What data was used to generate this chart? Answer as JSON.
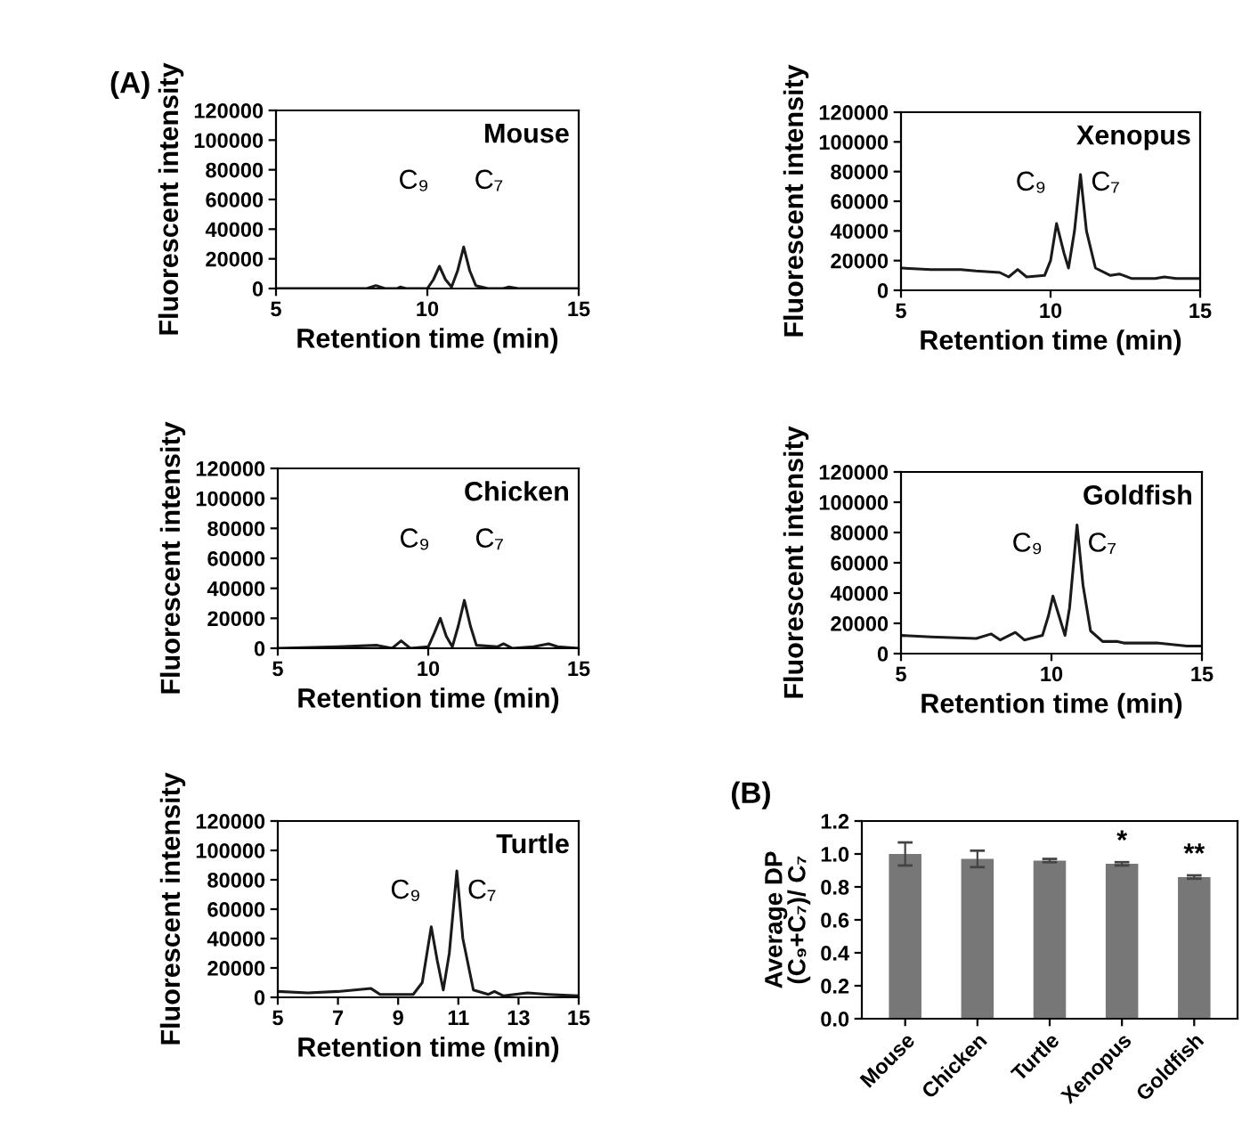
{
  "chart_data": [
    {
      "type": "line",
      "title": "Mouse",
      "xlabel": "Retention time (min)",
      "ylabel": "Fluorescent intensity",
      "xlim": [
        5,
        15
      ],
      "xticks": [
        5,
        10,
        15
      ],
      "ylim": [
        0,
        120000
      ],
      "yticks": [
        0,
        20000,
        40000,
        60000,
        80000,
        100000,
        120000
      ],
      "grid": false,
      "legend": false,
      "marker": "none",
      "line_style": "solid",
      "series": [
        {
          "color": "#1a1a1a",
          "x": [
            5,
            6,
            7,
            8,
            8.3,
            8.6,
            9,
            9.1,
            9.3,
            10,
            10.2,
            10.4,
            10.6,
            10.8,
            11.0,
            11.2,
            11.4,
            11.6,
            12,
            12.5,
            12.7,
            13,
            14,
            15
          ],
          "values": [
            0,
            0,
            0,
            0,
            2000,
            0,
            0,
            1000,
            0,
            0,
            6000,
            15000,
            6000,
            1000,
            12000,
            28000,
            12000,
            2000,
            0,
            0,
            1000,
            0,
            0,
            0
          ]
        }
      ],
      "annotations": [
        "(A)",
        {
          "text": "C₉",
          "x": 10.4,
          "y": 15000
        },
        {
          "text": "C₇",
          "x": 11.2,
          "y": 28000
        }
      ]
    },
    {
      "type": "line",
      "title": "Xenopus",
      "xlabel": "Retention time (min)",
      "ylabel": "Fluorescent intensity",
      "xlim": [
        5,
        15
      ],
      "xticks": [
        5,
        10,
        15
      ],
      "ylim": [
        0,
        120000
      ],
      "yticks": [
        0,
        20000,
        40000,
        60000,
        80000,
        100000,
        120000
      ],
      "grid": false,
      "legend": false,
      "marker": "none",
      "line_style": "solid",
      "series": [
        {
          "color": "#1a1a1a",
          "x": [
            5,
            6,
            7,
            7.5,
            8.3,
            8.6,
            8.9,
            9.2,
            9.8,
            10.0,
            10.2,
            10.45,
            10.6,
            10.8,
            11.0,
            11.2,
            11.5,
            12,
            12.3,
            12.7,
            13.5,
            13.8,
            14.2,
            15
          ],
          "values": [
            15000,
            14000,
            14000,
            13000,
            12000,
            9000,
            14000,
            9000,
            10000,
            20000,
            45000,
            25000,
            15000,
            40000,
            78000,
            40000,
            15000,
            10000,
            11000,
            8000,
            8000,
            9000,
            8000,
            8000
          ]
        }
      ],
      "annotations": [
        {
          "text": "C₉",
          "x": 10.2,
          "y": 45000
        },
        {
          "text": "C₇",
          "x": 11.0,
          "y": 78000
        }
      ]
    },
    {
      "type": "line",
      "title": "Chicken",
      "xlabel": "Retention time (min)",
      "ylabel": "Fluorescent intensity",
      "xlim": [
        5,
        15
      ],
      "xticks": [
        5,
        10,
        15
      ],
      "ylim": [
        0,
        120000
      ],
      "yticks": [
        0,
        20000,
        40000,
        60000,
        80000,
        100000,
        120000
      ],
      "grid": false,
      "legend": false,
      "marker": "none",
      "line_style": "solid",
      "series": [
        {
          "color": "#1a1a1a",
          "x": [
            5,
            7,
            8.3,
            8.8,
            9.1,
            9.4,
            10.0,
            10.2,
            10.4,
            10.6,
            10.8,
            11.0,
            11.2,
            11.4,
            11.6,
            12.3,
            12.5,
            12.8,
            13.5,
            14.0,
            14.3,
            15
          ],
          "values": [
            0,
            1000,
            2000,
            0,
            5000,
            0,
            1000,
            10000,
            20000,
            8000,
            1000,
            15000,
            32000,
            15000,
            2000,
            1000,
            3000,
            0,
            1000,
            3000,
            1000,
            0
          ]
        }
      ],
      "annotations": [
        {
          "text": "C₉",
          "x": 10.4,
          "y": 20000
        },
        {
          "text": "C₇",
          "x": 11.2,
          "y": 32000
        }
      ]
    },
    {
      "type": "line",
      "title": "Goldfish",
      "xlabel": "Retention time (min)",
      "ylabel": "Fluorescent intensity",
      "xlim": [
        5,
        15
      ],
      "xticks": [
        5,
        10,
        15
      ],
      "ylim": [
        0,
        120000
      ],
      "yticks": [
        0,
        20000,
        40000,
        60000,
        80000,
        100000,
        120000
      ],
      "grid": false,
      "legend": false,
      "marker": "none",
      "line_style": "solid",
      "series": [
        {
          "color": "#1a1a1a",
          "x": [
            5,
            6,
            7.5,
            8.0,
            8.3,
            8.8,
            9.1,
            9.7,
            9.9,
            10.05,
            10.25,
            10.45,
            10.6,
            10.85,
            11.05,
            11.3,
            11.7,
            12.2,
            12.4,
            13.5,
            14.5,
            15
          ],
          "values": [
            12000,
            11000,
            10000,
            13000,
            9000,
            14000,
            9000,
            12000,
            25000,
            38000,
            25000,
            12000,
            30000,
            85000,
            45000,
            15000,
            8000,
            8000,
            7000,
            7000,
            5000,
            5000
          ]
        }
      ],
      "annotations": [
        {
          "text": "C₉",
          "x": 10.05,
          "y": 38000
        },
        {
          "text": "C₇",
          "x": 10.85,
          "y": 85000
        }
      ]
    },
    {
      "type": "line",
      "title": "Turtle",
      "xlabel": "Retention time (min)",
      "ylabel": "Fluorescent intensity",
      "xlim": [
        5,
        15
      ],
      "xticks": [
        5,
        7,
        9,
        11,
        13,
        15
      ],
      "ylim": [
        0,
        120000
      ],
      "yticks": [
        0,
        20000,
        40000,
        60000,
        80000,
        100000,
        120000
      ],
      "grid": false,
      "legend": false,
      "marker": "none",
      "line_style": "solid",
      "series": [
        {
          "color": "#1a1a1a",
          "x": [
            5,
            6,
            7,
            8.1,
            8.4,
            9,
            9.5,
            9.8,
            10.1,
            10.3,
            10.5,
            10.7,
            10.95,
            11.15,
            11.5,
            12,
            12.2,
            12.5,
            13.3,
            14,
            15
          ],
          "values": [
            4000,
            3000,
            4000,
            6000,
            2000,
            2000,
            2000,
            10000,
            48000,
            25000,
            5000,
            30000,
            86000,
            40000,
            5000,
            2000,
            4000,
            1000,
            3000,
            2000,
            1000
          ]
        }
      ],
      "annotations": [
        {
          "text": "C₉",
          "x": 10.1,
          "y": 48000
        },
        {
          "text": "C₇",
          "x": 10.95,
          "y": 86000
        }
      ]
    },
    {
      "type": "bar",
      "ylabel": "Average DP\n(C₉+C₇)/ C₇",
      "categories": [
        "Mouse",
        "Chicken",
        "Turtle",
        "Xenopus",
        "Goldfish"
      ],
      "values": [
        1.0,
        0.97,
        0.96,
        0.94,
        0.86
      ],
      "errors": [
        0.07,
        0.05,
        0.01,
        0.01,
        0.01
      ],
      "color": "#777777",
      "ylim": [
        0,
        1.2
      ],
      "yticks": [
        {
          "value": 0,
          "label": "0.0"
        },
        0.2,
        0.4,
        0.6,
        0.8,
        {
          "value": 1.0,
          "label": "1.0"
        },
        1.2
      ],
      "grid": false,
      "legend": false,
      "annotations": [
        "(B)",
        {
          "text": "*",
          "x": "Xenopus",
          "y": 0.95
        },
        {
          "text": "**",
          "x": "Goldfish",
          "y": 0.87
        }
      ]
    }
  ]
}
